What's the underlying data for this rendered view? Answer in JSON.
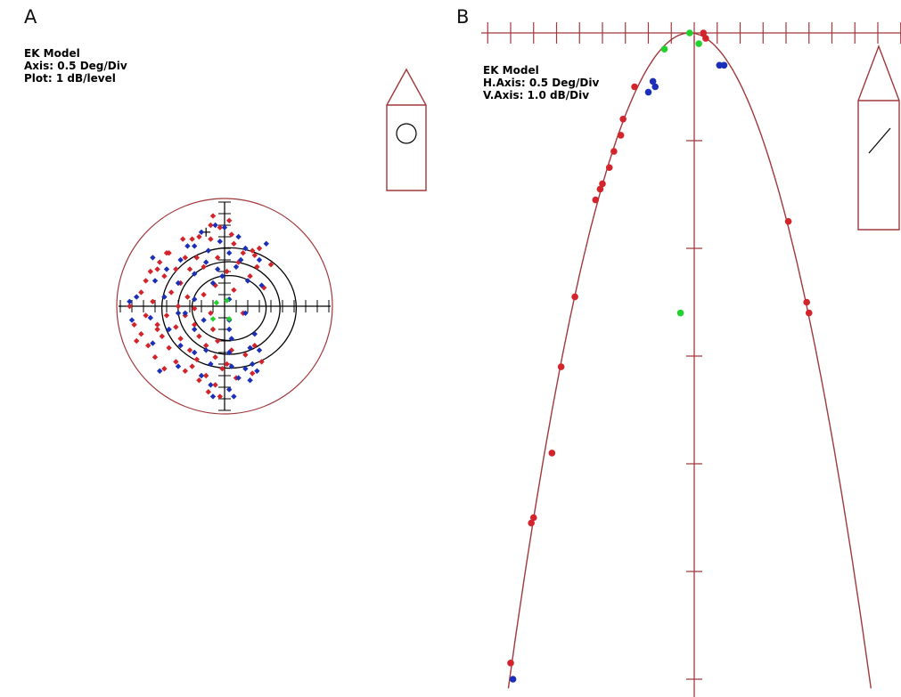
{
  "panels": {
    "a": {
      "letter": "A",
      "lines": [
        "EK Model",
        "Axis: 0.5 Deg/Div",
        "Plot: 1 dB/level"
      ]
    },
    "b": {
      "letter": "B",
      "lines": [
        "EK Model",
        "H.Axis: 0.5 Deg/Div",
        "V.Axis: 1.0 dB/Div"
      ]
    }
  },
  "colors": {
    "axis_frame": "#a0383c",
    "crosshair": "#000000",
    "contour": "#000000",
    "series_red": "#d3242b",
    "series_blue": "#1b2fb8",
    "series_green": "#22d12e"
  },
  "chart_data": [
    {
      "panel": "A",
      "type": "scatter",
      "title": "EK Model",
      "notes": [
        "Axis: 0.5 Deg/Div",
        "Plot: 1 dB/level"
      ],
      "xlabel": "",
      "ylabel": "",
      "xlim": [
        -4.5,
        4.5
      ],
      "ylim": [
        -4.5,
        4.5
      ],
      "axis_units": "deg",
      "contours_deg": [
        {
          "rx": 1.6,
          "ry": 1.4
        },
        {
          "rx": 2.2,
          "ry": 2.0
        },
        {
          "rx": 2.9,
          "ry": 2.6
        }
      ],
      "boundary_radius_deg": 4.5,
      "reference_marker": [
        -0.8,
        3.2
      ],
      "series": [
        {
          "color": "red",
          "points": [
            [
              -0.5,
              3.9
            ],
            [
              0.2,
              3.7
            ],
            [
              -0.2,
              3.4
            ],
            [
              -0.6,
              3.5
            ],
            [
              0.3,
              3.1
            ],
            [
              -1.1,
              3.0
            ],
            [
              -1.4,
              2.9
            ],
            [
              -1.8,
              2.9
            ],
            [
              -0.6,
              2.9
            ],
            [
              0.4,
              2.7
            ],
            [
              1.5,
              2.5
            ],
            [
              1.2,
              2.4
            ],
            [
              1.3,
              2.2
            ],
            [
              0.8,
              2.3
            ],
            [
              -2.4,
              2.3
            ],
            [
              -2.5,
              2.3
            ],
            [
              -0.3,
              2.1
            ],
            [
              -1.2,
              2.1
            ],
            [
              -1.7,
              2.1
            ],
            [
              -2.8,
              1.9
            ],
            [
              0.6,
              1.9
            ],
            [
              2.0,
              1.8
            ],
            [
              1.4,
              1.7
            ],
            [
              -2.1,
              1.6
            ],
            [
              -2.9,
              1.6
            ],
            [
              -3.2,
              1.5
            ],
            [
              -0.9,
              1.7
            ],
            [
              -1.5,
              1.6
            ],
            [
              0.1,
              1.5
            ],
            [
              1.1,
              1.3
            ],
            [
              -2.6,
              1.3
            ],
            [
              -3.4,
              1.1
            ],
            [
              -1.9,
              1.0
            ],
            [
              -0.4,
              0.9
            ],
            [
              0.4,
              0.7
            ],
            [
              1.7,
              0.8
            ],
            [
              -3.6,
              0.6
            ],
            [
              -2.3,
              0.6
            ],
            [
              -0.9,
              0.5
            ],
            [
              -1.6,
              0.4
            ],
            [
              -4.1,
              0.0
            ],
            [
              -3.1,
              0.2
            ],
            [
              -2.0,
              0.0
            ],
            [
              -1.3,
              -0.1
            ],
            [
              -3.4,
              -0.4
            ],
            [
              -2.5,
              -0.4
            ],
            [
              -1.7,
              -0.4
            ],
            [
              -0.6,
              -0.3
            ],
            [
              0.8,
              -0.3
            ],
            [
              -3.9,
              -0.8
            ],
            [
              -2.9,
              -0.8
            ],
            [
              -2.1,
              -0.9
            ],
            [
              -1.3,
              -0.8
            ],
            [
              -0.5,
              -1.0
            ],
            [
              -3.6,
              -1.2
            ],
            [
              -2.7,
              -1.3
            ],
            [
              -1.9,
              -1.4
            ],
            [
              -1.1,
              -1.3
            ],
            [
              -0.3,
              -1.5
            ],
            [
              -3.3,
              -1.7
            ],
            [
              -2.4,
              -1.8
            ],
            [
              -1.5,
              -1.9
            ],
            [
              -0.8,
              -1.7
            ],
            [
              -3.0,
              -2.2
            ],
            [
              -2.1,
              -2.4
            ],
            [
              -1.2,
              -2.3
            ],
            [
              -0.4,
              -2.2
            ],
            [
              -0.1,
              -2.7
            ],
            [
              -1.7,
              -2.8
            ],
            [
              -2.6,
              -2.7
            ],
            [
              -1.1,
              -3.2
            ],
            [
              -0.4,
              -3.4
            ],
            [
              -0.7,
              -3.7
            ],
            [
              -0.2,
              -3.9
            ],
            [
              0.1,
              -2.5
            ],
            [
              0.9,
              -2.1
            ],
            [
              1.6,
              -2.4
            ],
            [
              1.2,
              -2.9
            ],
            [
              0.5,
              -3.1
            ],
            [
              -2.9,
              -1.0
            ],
            [
              -3.8,
              -1.5
            ],
            [
              -1.4,
              -2.6
            ],
            [
              -0.8,
              -3.0
            ],
            [
              0.3,
              -1.9
            ],
            [
              1.3,
              -1.7
            ]
          ]
        },
        {
          "color": "blue",
          "points": [
            [
              -0.4,
              3.5
            ],
            [
              0.0,
              3.4
            ],
            [
              -1.0,
              3.2
            ],
            [
              0.6,
              3.0
            ],
            [
              -0.2,
              2.8
            ],
            [
              1.8,
              2.7
            ],
            [
              -1.3,
              2.6
            ],
            [
              0.9,
              2.5
            ],
            [
              -0.7,
              2.4
            ],
            [
              0.2,
              2.3
            ],
            [
              -3.1,
              2.1
            ],
            [
              -1.9,
              2.0
            ],
            [
              1.5,
              2.0
            ],
            [
              -0.8,
              1.9
            ],
            [
              0.5,
              1.7
            ],
            [
              -2.5,
              1.6
            ],
            [
              -1.3,
              1.4
            ],
            [
              -0.1,
              1.3
            ],
            [
              1.0,
              1.1
            ],
            [
              -3.0,
              1.1
            ],
            [
              -2.0,
              1.0
            ],
            [
              -0.5,
              1.0
            ],
            [
              -3.8,
              0.4
            ],
            [
              -4.1,
              0.2
            ],
            [
              -2.6,
              0.4
            ],
            [
              -1.3,
              0.3
            ],
            [
              0.2,
              0.3
            ],
            [
              -2.0,
              -0.3
            ],
            [
              -0.9,
              -0.6
            ],
            [
              0.2,
              -0.6
            ],
            [
              -4.0,
              -0.6
            ],
            [
              -3.2,
              -0.5
            ],
            [
              -2.4,
              -1.0
            ],
            [
              -1.3,
              -1.0
            ],
            [
              0.2,
              -1.0
            ],
            [
              0.3,
              -1.4
            ],
            [
              -3.1,
              -1.6
            ],
            [
              -1.9,
              -1.7
            ],
            [
              0.2,
              -2.0
            ],
            [
              1.1,
              -1.8
            ],
            [
              1.5,
              -1.9
            ],
            [
              -2.8,
              -2.8
            ],
            [
              -1.3,
              -2.0
            ],
            [
              -0.6,
              -2.5
            ],
            [
              0.3,
              -2.6
            ],
            [
              0.9,
              -2.7
            ],
            [
              1.4,
              -2.8
            ],
            [
              0.6,
              -3.1
            ],
            [
              1.1,
              -3.2
            ],
            [
              -0.6,
              -3.4
            ],
            [
              0.2,
              -3.6
            ],
            [
              -0.5,
              -3.9
            ],
            [
              0.4,
              -3.9
            ],
            [
              1.2,
              -2.5
            ],
            [
              -2.0,
              -2.6
            ],
            [
              -1.0,
              -3.0
            ],
            [
              1.3,
              -1.2
            ],
            [
              0.9,
              -0.3
            ],
            [
              1.6,
              0.9
            ],
            [
              -1.6,
              2.6
            ],
            [
              0.7,
              2.0
            ],
            [
              -0.3,
              1.6
            ],
            [
              -1.7,
              -0.3
            ],
            [
              -0.8,
              -1.9
            ]
          ]
        },
        {
          "color": "green",
          "points": [
            [
              -0.35,
              0.15
            ],
            [
              0.1,
              0.25
            ],
            [
              -0.5,
              -0.55
            ],
            [
              0.2,
              -0.55
            ]
          ]
        }
      ]
    },
    {
      "panel": "B",
      "type": "scatter",
      "title": "EK Model",
      "notes": [
        "H.Axis: 0.5 Deg/Div",
        "V.Axis: 1.0 dB/Div"
      ],
      "xlabel": "",
      "ylabel": "",
      "xlim": [
        -4.5,
        4.5
      ],
      "ylim": [
        -6.0,
        0.0
      ],
      "x_units": "deg",
      "y_units": "dB",
      "fit_curve": {
        "shape": "parabola",
        "vertex": [
          -0.1,
          0.0
        ],
        "a": -0.39
      },
      "series": [
        {
          "color": "red",
          "points": [
            [
              0.2,
              0.0
            ],
            [
              0.25,
              -0.05
            ],
            [
              -1.3,
              -0.5
            ],
            [
              -1.55,
              -0.8
            ],
            [
              -1.6,
              -0.95
            ],
            [
              -1.75,
              -1.1
            ],
            [
              -1.85,
              -1.25
            ],
            [
              -2.0,
              -1.4
            ],
            [
              -2.05,
              -1.45
            ],
            [
              -2.15,
              -1.55
            ],
            [
              -2.6,
              -2.45
            ],
            [
              -2.9,
              -3.1
            ],
            [
              -3.1,
              -3.9
            ],
            [
              -3.5,
              -4.5
            ],
            [
              -3.55,
              -4.55
            ],
            [
              -4.0,
              -5.85
            ],
            [
              2.05,
              -1.75
            ],
            [
              2.45,
              -2.5
            ],
            [
              2.5,
              -2.6
            ]
          ]
        },
        {
          "color": "blue",
          "points": [
            [
              -0.9,
              -0.45
            ],
            [
              -0.85,
              -0.5
            ],
            [
              -1.0,
              -0.55
            ],
            [
              0.55,
              -0.3
            ],
            [
              0.65,
              -0.3
            ],
            [
              -3.95,
              -6.0
            ]
          ]
        },
        {
          "color": "green",
          "points": [
            [
              -0.1,
              0.0
            ],
            [
              -0.65,
              -0.15
            ],
            [
              0.1,
              -0.1
            ],
            [
              -0.3,
              -2.6
            ]
          ]
        }
      ]
    }
  ]
}
